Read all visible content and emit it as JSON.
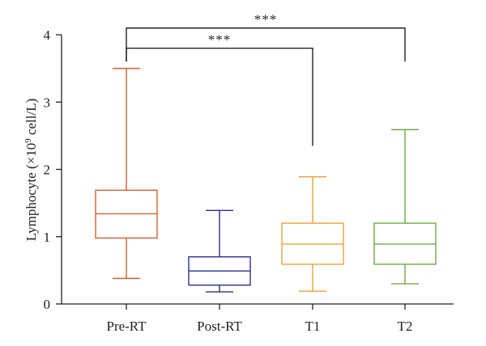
{
  "chart_data": {
    "type": "box",
    "ylabel": {
      "prefix": "Lymphocyte (×10",
      "sup": "9",
      "suffix": " cell/L)"
    },
    "ylim": [
      0,
      4
    ],
    "yticks": [
      0,
      1,
      2,
      3,
      4
    ],
    "categories": [
      "Pre-RT",
      "Post-RT",
      "T1",
      "T2"
    ],
    "boxes": [
      {
        "category": "Pre-RT",
        "min": 0.38,
        "q1": 0.98,
        "median": 1.34,
        "q3": 1.69,
        "max": 3.5,
        "color": "#d95f2b"
      },
      {
        "category": "Post-RT",
        "min": 0.18,
        "q1": 0.28,
        "median": 0.49,
        "q3": 0.7,
        "max": 1.39,
        "color": "#2e2f8f"
      },
      {
        "category": "T1",
        "min": 0.19,
        "q1": 0.59,
        "median": 0.89,
        "q3": 1.2,
        "max": 1.89,
        "color": "#f0a030"
      },
      {
        "category": "T2",
        "min": 0.3,
        "q1": 0.59,
        "median": 0.89,
        "q3": 1.2,
        "max": 2.59,
        "color": "#6aaa44"
      }
    ],
    "significance": [
      {
        "from": "Pre-RT",
        "to": "T2",
        "label": "***",
        "bracket_y": 4.1,
        "drop_to": 3.6
      },
      {
        "from": "Pre-RT",
        "to": "T1",
        "label": "***",
        "bracket_y": 3.8,
        "drop_to": 2.35
      }
    ],
    "grid": false
  }
}
